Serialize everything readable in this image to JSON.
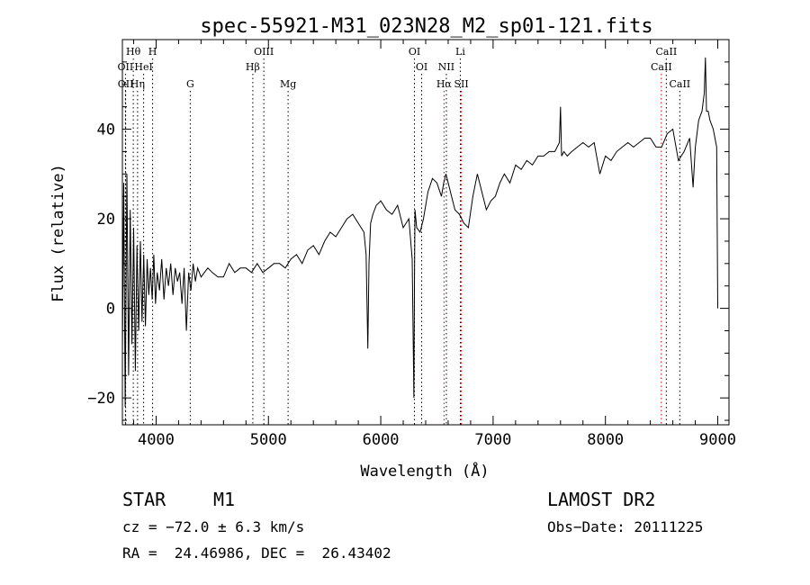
{
  "chart_data": {
    "type": "line",
    "title": "spec-55921-M31_023N28_M2_sp01-121.fits",
    "xlabel": "Wavelength (Å)",
    "ylabel": "Flux (relative)",
    "xlim": [
      3700,
      9100
    ],
    "ylim": [
      -26,
      60
    ],
    "x_ticks": [
      4000,
      5000,
      6000,
      7000,
      8000,
      9000
    ],
    "x_tick_labels": [
      "4000",
      "5000",
      "6000",
      "7000",
      "8000",
      "9000"
    ],
    "y_ticks": [
      -20,
      0,
      20,
      40
    ],
    "y_tick_labels": [
      "−20",
      "0",
      "20",
      "40"
    ],
    "grid": false,
    "series": [
      {
        "x": [
          3700,
          3712,
          3725,
          3740,
          3755,
          3770,
          3785,
          3800,
          3815,
          3830,
          3845,
          3860,
          3875,
          3890,
          3905,
          3920,
          3935,
          3950,
          3965,
          3980,
          3995,
          4010,
          4030,
          4050,
          4070,
          4090,
          4110,
          4130,
          4150,
          4170,
          4190,
          4210,
          4230,
          4250,
          4270,
          4290,
          4310,
          4330,
          4350,
          4370,
          4400,
          4430,
          4460,
          4500,
          4550,
          4600,
          4650,
          4700,
          4750,
          4800,
          4850,
          4900,
          4950,
          5000,
          5050,
          5100,
          5150,
          5200,
          5250,
          5300,
          5350,
          5400,
          5450,
          5500,
          5550,
          5600,
          5650,
          5700,
          5750,
          5800,
          5850,
          5870,
          5885,
          5895,
          5910,
          5930,
          5960,
          6000,
          6050,
          6100,
          6150,
          6200,
          6250,
          6280,
          6295,
          6300,
          6305,
          6320,
          6350,
          6380,
          6420,
          6460,
          6500,
          6540,
          6560,
          6580,
          6620,
          6660,
          6700,
          6740,
          6780,
          6820,
          6860,
          6900,
          6940,
          6980,
          7020,
          7060,
          7100,
          7150,
          7200,
          7250,
          7300,
          7350,
          7400,
          7450,
          7500,
          7550,
          7590,
          7600,
          7610,
          7630,
          7660,
          7700,
          7750,
          7800,
          7850,
          7900,
          7950,
          8000,
          8050,
          8100,
          8150,
          8200,
          8250,
          8300,
          8350,
          8400,
          8450,
          8500,
          8550,
          8600,
          8650,
          8700,
          8750,
          8780,
          8800,
          8830,
          8860,
          8880,
          8890,
          8900,
          8915,
          8930,
          8945,
          8960,
          8975,
          8990,
          9000
        ],
        "y": [
          -10,
          28,
          -22,
          30,
          -15,
          22,
          -8,
          18,
          -14,
          14,
          -5,
          15,
          -3,
          12,
          -4,
          11,
          3,
          9,
          2,
          12,
          1,
          8,
          4,
          11,
          2,
          9,
          5,
          10,
          3,
          9,
          6,
          8,
          1,
          9,
          -5,
          8,
          4,
          10,
          6,
          9,
          7,
          8,
          9,
          8,
          7,
          7,
          10,
          8,
          9,
          9,
          8,
          10,
          8,
          9,
          10,
          10,
          9,
          11,
          12,
          10,
          13,
          14,
          12,
          15,
          17,
          16,
          18,
          20,
          21,
          19,
          17,
          12,
          -9,
          10,
          19,
          21,
          23,
          24,
          22,
          21,
          23,
          18,
          20,
          11,
          -20,
          5,
          22,
          18,
          17,
          20,
          26,
          29,
          28,
          25,
          28,
          30,
          26,
          22,
          21,
          19,
          18,
          25,
          30,
          26,
          22,
          24,
          25,
          28,
          30,
          28,
          32,
          31,
          33,
          32,
          34,
          34,
          35,
          35,
          37,
          45,
          34,
          35,
          34,
          35,
          36,
          37,
          36,
          37,
          30,
          34,
          33,
          35,
          36,
          37,
          36,
          37,
          38,
          38,
          36,
          36,
          39,
          40,
          33,
          35,
          38,
          27,
          36,
          42,
          44,
          48,
          56,
          44,
          44,
          42,
          41,
          40,
          38,
          36,
          0
        ]
      }
    ],
    "line_markers": [
      {
        "label": "Hθ",
        "x": 3797,
        "row": 0,
        "color": "#000000"
      },
      {
        "label": "H",
        "x": 3969,
        "row": 0,
        "color": "#000000"
      },
      {
        "label": "OII",
        "x": 3727,
        "row": 1,
        "color": "#000000"
      },
      {
        "label": "HeI",
        "x": 3889,
        "row": 1,
        "color": "#000000"
      },
      {
        "label": "OII",
        "x": 3729,
        "row": 2,
        "color": "#000000"
      },
      {
        "label": "Hη",
        "x": 3835,
        "row": 2,
        "color": "#000000"
      },
      {
        "label": "G",
        "x": 4304,
        "row": 2,
        "color": "#000000"
      },
      {
        "label": "OIII",
        "x": 4959,
        "row": 0,
        "color": "#000000"
      },
      {
        "label": "Hβ",
        "x": 4861,
        "row": 1,
        "color": "#000000"
      },
      {
        "label": "Mg",
        "x": 5175,
        "row": 2,
        "color": "#000000"
      },
      {
        "label": "OI",
        "x": 6300,
        "row": 0,
        "color": "#000000"
      },
      {
        "label": "OI",
        "x": 6364,
        "row": 1,
        "color": "#000000"
      },
      {
        "label": "Li",
        "x": 6708,
        "row": 0,
        "color": "#000000"
      },
      {
        "label": "NII",
        "x": 6584,
        "row": 1,
        "color": "#000000"
      },
      {
        "label": "Hα",
        "x": 6563,
        "row": 2,
        "color": "#cc0000"
      },
      {
        "label": "SII",
        "x": 6717,
        "row": 2,
        "color": "#cc0000"
      },
      {
        "label": "CaII",
        "x": 8542,
        "row": 0,
        "color": "#000000"
      },
      {
        "label": "CaII",
        "x": 8498,
        "row": 1,
        "color": "#cc0000"
      },
      {
        "label": "CaII",
        "x": 8662,
        "row": 2,
        "color": "#000000"
      }
    ]
  },
  "info": {
    "object_class": "STAR",
    "subclass": "M1",
    "survey": "LAMOST DR2",
    "cz": "cz = −72.0 ± 6.3 km/s",
    "obs_date": "Obs−Date: 20111225",
    "coords": "RA =  24.46986, DEC =  26.43402"
  }
}
